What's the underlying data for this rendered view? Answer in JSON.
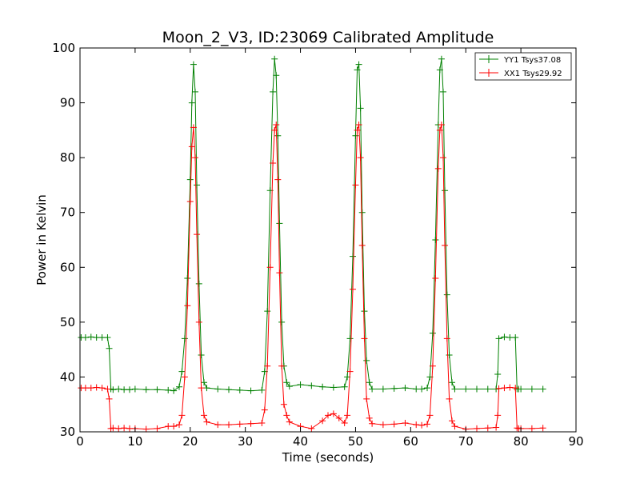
{
  "chart_data": {
    "type": "line",
    "title": "Moon_2_V3, ID:23069 Calibrated Amplitude",
    "xlabel": "Time (seconds)",
    "ylabel": "Power in Kelvin",
    "xlim": [
      0,
      90
    ],
    "ylim": [
      30,
      100
    ],
    "x_ticks": [
      0,
      10,
      20,
      30,
      40,
      50,
      60,
      70,
      80,
      90
    ],
    "y_ticks": [
      30,
      40,
      50,
      60,
      70,
      80,
      90,
      100
    ],
    "grid": false,
    "legend_position": "top-right",
    "marker": "+",
    "series": [
      {
        "name": "YY1 Tsys37.08",
        "color": "#008000",
        "x": [
          0.2,
          1,
          2,
          3,
          4,
          5,
          5.3,
          5.6,
          6,
          7,
          8,
          9,
          10,
          12,
          14,
          16,
          17,
          18,
          18.5,
          19,
          19.5,
          20,
          20.3,
          20.6,
          20.9,
          21.2,
          21.6,
          22,
          22.5,
          23,
          25,
          27,
          29,
          31,
          33,
          33.5,
          34,
          34.5,
          35,
          35.3,
          35.6,
          35.9,
          36.2,
          36.6,
          37,
          37.5,
          38,
          40,
          42,
          44,
          46,
          48,
          48.5,
          49,
          49.5,
          50,
          50.3,
          50.6,
          50.9,
          51.2,
          51.6,
          52,
          52.5,
          53,
          55,
          57,
          59,
          61,
          62,
          63,
          63.5,
          64,
          64.5,
          65,
          65.3,
          65.6,
          65.9,
          66.2,
          66.6,
          67,
          67.5,
          68,
          70,
          72,
          74,
          75.5,
          75.8,
          76,
          77,
          78,
          79,
          79.3,
          79.6,
          80,
          82,
          84
        ],
        "y": [
          47.2,
          47.2,
          47.3,
          47.2,
          47.2,
          47.2,
          45.2,
          37.8,
          37.7,
          37.8,
          37.7,
          37.7,
          37.8,
          37.7,
          37.7,
          37.6,
          37.5,
          38.2,
          41,
          47,
          58,
          76,
          90,
          97,
          92,
          75,
          57,
          44,
          39,
          38,
          37.8,
          37.7,
          37.6,
          37.5,
          37.6,
          41,
          52,
          74,
          92,
          98,
          95,
          84,
          68,
          50,
          42,
          39,
          38.3,
          38.6,
          38.4,
          38.2,
          38.1,
          38.2,
          40,
          47,
          62,
          84,
          96,
          97,
          89,
          70,
          52,
          43,
          39,
          37.8,
          37.8,
          37.9,
          38,
          37.8,
          37.8,
          38,
          40,
          48,
          65,
          86,
          96,
          98,
          92,
          74,
          55,
          44,
          39,
          37.8,
          37.8,
          37.8,
          37.8,
          37.8,
          40.5,
          47,
          47.3,
          47.2,
          47.2,
          37.8,
          37.8,
          37.8,
          37.8,
          37.8
        ]
      },
      {
        "name": "XX1 Tsys29.92",
        "color": "#ff0000",
        "x": [
          0.2,
          1,
          2,
          3,
          4,
          5,
          5.3,
          5.6,
          6,
          7,
          8,
          9,
          10,
          12,
          14,
          16,
          17,
          18,
          18.5,
          19,
          19.5,
          20,
          20.3,
          20.6,
          20.9,
          21.2,
          21.6,
          22,
          22.5,
          23,
          25,
          27,
          29,
          31,
          33,
          33.5,
          34,
          34.5,
          35,
          35.3,
          35.6,
          35.9,
          36.2,
          36.6,
          37,
          37.5,
          38,
          40,
          42,
          44,
          45,
          46,
          47,
          48,
          48.5,
          49,
          49.5,
          50,
          50.3,
          50.6,
          50.9,
          51.2,
          51.6,
          52,
          52.5,
          53,
          55,
          57,
          59,
          61,
          62,
          63,
          63.5,
          64,
          64.5,
          65,
          65.3,
          65.6,
          65.9,
          66.2,
          66.6,
          67,
          67.5,
          68,
          70,
          72,
          74,
          75.5,
          75.8,
          76,
          77,
          78,
          79,
          79.3,
          79.6,
          80,
          82,
          84
        ],
        "y": [
          38,
          38,
          38,
          38.1,
          38,
          37.8,
          36,
          30.6,
          30.7,
          30.6,
          30.7,
          30.6,
          30.6,
          30.5,
          30.6,
          31,
          31,
          31.3,
          33,
          40,
          53,
          72,
          82,
          85.5,
          80,
          66,
          50,
          38,
          33,
          31.8,
          31.3,
          31.3,
          31.4,
          31.5,
          31.6,
          34,
          42,
          60,
          79,
          85,
          86,
          76,
          59,
          42,
          35,
          33,
          31.8,
          31,
          30.6,
          32,
          33,
          33.3,
          32.5,
          31.6,
          33,
          41,
          56,
          75,
          85,
          86,
          80,
          64,
          47,
          36,
          32.5,
          31.5,
          31.3,
          31.4,
          31.6,
          31.3,
          31.2,
          31.4,
          33,
          42,
          58,
          78,
          85,
          86,
          80,
          64,
          47,
          36,
          32,
          31,
          30.5,
          30.6,
          30.7,
          30.8,
          33,
          37.9,
          38,
          38.1,
          38,
          30.7,
          30.6,
          30.6,
          30.6,
          30.7
        ]
      }
    ]
  }
}
